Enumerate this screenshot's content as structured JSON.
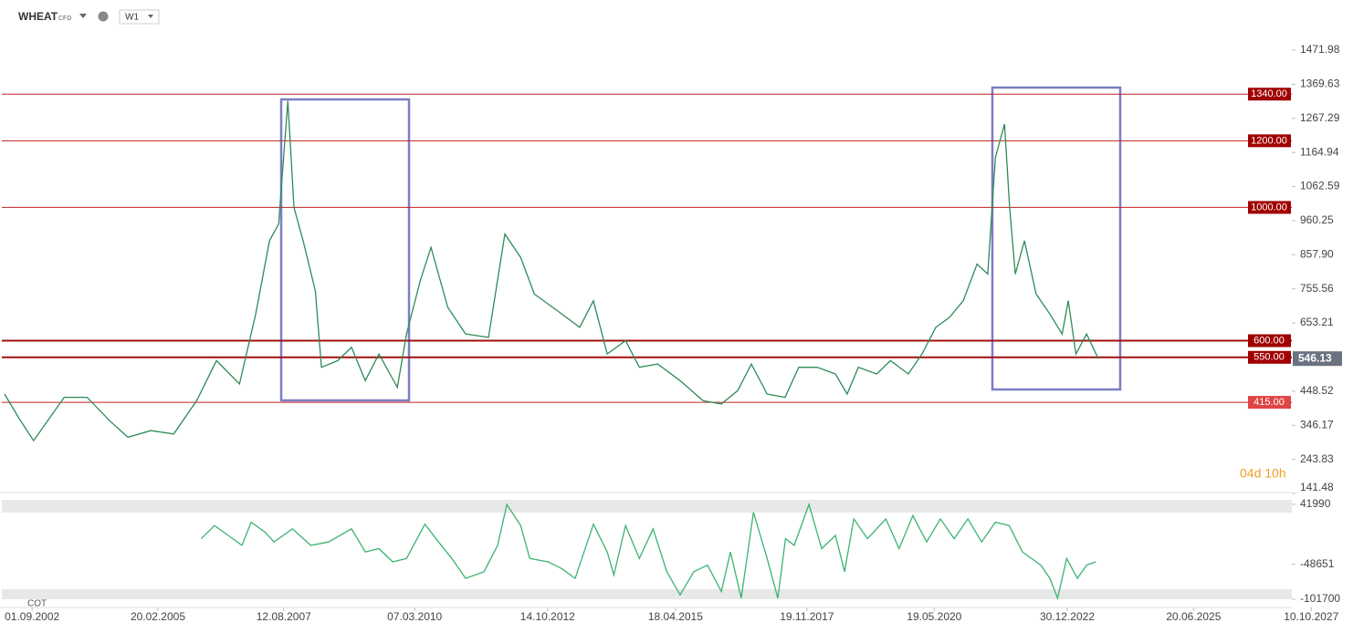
{
  "header": {
    "symbol": "WHEAT",
    "instrument": "CFD",
    "interval": "W1"
  },
  "countdown": "04d 10h",
  "chart_data": [
    {
      "type": "line",
      "series": [
        {
          "name": "WHEAT",
          "color": "#2e8b57",
          "x": [
            2002.13,
            2002.4,
            2002.7,
            2003.3,
            2003.75,
            2004.19,
            2004.55,
            2005.0,
            2005.45,
            2005.9,
            2006.29,
            2006.74,
            2007.06,
            2007.33,
            2007.51,
            2007.69,
            2007.81,
            2007.99,
            2008.23,
            2008.35,
            2008.67,
            2008.94,
            2009.21,
            2009.48,
            2009.84,
            2010.02,
            2010.29,
            2010.5,
            2010.83,
            2011.18,
            2011.63,
            2011.95,
            2012.26,
            2012.53,
            2012.98,
            2013.42,
            2013.69,
            2013.96,
            2014.32,
            2014.59,
            2014.95,
            2015.39,
            2015.84,
            2016.2,
            2016.52,
            2016.79,
            2017.1,
            2017.45,
            2017.72,
            2018.08,
            2018.44,
            2018.67,
            2018.89,
            2019.25,
            2019.52,
            2019.87,
            2020.14,
            2020.41,
            2020.68,
            2020.95,
            2021.22,
            2021.43,
            2021.58,
            2021.76,
            2021.86,
            2021.97,
            2022.15,
            2022.38,
            2022.65,
            2022.89,
            2023.01,
            2023.16,
            2023.37,
            2023.6
          ],
          "values": [
            440,
            370,
            300,
            430,
            430,
            360,
            310,
            330,
            320,
            420,
            540,
            470,
            680,
            900,
            950,
            1320,
            1000,
            900,
            750,
            520,
            540,
            580,
            480,
            560,
            460,
            620,
            780,
            880,
            700,
            620,
            610,
            920,
            850,
            740,
            690,
            640,
            720,
            560,
            600,
            520,
            530,
            480,
            420,
            410,
            450,
            530,
            440,
            430,
            520,
            520,
            500,
            440,
            520,
            500,
            540,
            500,
            560,
            640,
            670,
            720,
            830,
            800,
            1150,
            1250,
            1000,
            800,
            900,
            740,
            680,
            620,
            720,
            560,
            620,
            546.13
          ]
        }
      ],
      "current_price": {
        "value": 546.13,
        "label": "546.13"
      },
      "levels": [
        {
          "value": 1340,
          "label": "1340.00"
        },
        {
          "value": 1200,
          "label": "1200.00"
        },
        {
          "value": 1000,
          "label": "1000.00"
        },
        {
          "value": 600,
          "label": "600.00"
        },
        {
          "value": 550,
          "label": "550.00"
        },
        {
          "value": 415,
          "label": "415.00"
        }
      ],
      "ylim": [
        141.48,
        1471.98
      ],
      "yticks": [
        1471.98,
        1369.63,
        1267.29,
        1164.94,
        1062.59,
        960.25,
        {
          "value": 857.9,
          "label": "857.90"
        },
        755.56,
        653.21,
        448.52,
        346.17,
        243.83,
        141.48
      ],
      "xlim": [
        2002.04,
        2028.6
      ],
      "xticks": [
        {
          "value": 2002.67,
          "label": "01.09.2002"
        },
        {
          "value": 2005.14,
          "label": "20.02.2005"
        },
        {
          "value": 2007.61,
          "label": "12.08.2007"
        },
        {
          "value": 2010.18,
          "label": "07.03.2010"
        },
        {
          "value": 2012.79,
          "label": "14.10.2012"
        },
        {
          "value": 2015.3,
          "label": "18.04.2015"
        },
        {
          "value": 2017.88,
          "label": "19.11.2017"
        },
        {
          "value": 2020.38,
          "label": "19.05.2020"
        },
        {
          "value": 2022.99,
          "label": "30.12.2022"
        },
        {
          "value": 2025.47,
          "label": "20.06.2025"
        },
        {
          "value": 2027.78,
          "label": "10.10.2027"
        }
      ]
    },
    {
      "type": "line",
      "title": "COT",
      "series": [
        {
          "name": "COT",
          "color": "#3cb371",
          "x": [
            2005.99,
            2006.25,
            2006.52,
            2006.79,
            2006.97,
            2007.24,
            2007.42,
            2007.78,
            2008.14,
            2008.49,
            2008.94,
            2009.21,
            2009.48,
            2009.75,
            2010.02,
            2010.38,
            2010.65,
            2010.91,
            2011.18,
            2011.54,
            2011.81,
            2011.99,
            2012.26,
            2012.44,
            2012.8,
            2013.06,
            2013.33,
            2013.69,
            2013.96,
            2014.09,
            2014.32,
            2014.59,
            2014.86,
            2015.13,
            2015.39,
            2015.66,
            2015.93,
            2016.2,
            2016.38,
            2016.59,
            2016.83,
            2017.1,
            2017.31,
            2017.46,
            2017.63,
            2017.92,
            2018.17,
            2018.44,
            2018.62,
            2018.8,
            2019.07,
            2019.43,
            2019.69,
            2019.96,
            2020.23,
            2020.5,
            2020.77,
            2021.04,
            2021.31,
            2021.58,
            2021.85,
            2022.11,
            2022.47,
            2022.65,
            2022.8,
            2022.98,
            2023.19,
            2023.37,
            2023.55
          ],
          "values": [
            -10000,
            10000,
            -5000,
            -20000,
            15000,
            0,
            -15000,
            5000,
            -20000,
            -15000,
            5000,
            -30000,
            -25000,
            -45000,
            -40000,
            12000,
            -15000,
            -40000,
            -70000,
            -60000,
            -20000,
            41990,
            10000,
            -40000,
            -45000,
            -55000,
            -70000,
            12000,
            -30000,
            -65000,
            10000,
            -40000,
            5000,
            -60000,
            -95000,
            -60000,
            -50000,
            -90000,
            -30000,
            -100000,
            30000,
            -40000,
            -100000,
            -10000,
            -20000,
            41990,
            -25000,
            -5000,
            -60000,
            20000,
            -10000,
            20000,
            -25000,
            25000,
            -15000,
            20000,
            -10000,
            20000,
            -15000,
            15000,
            10000,
            -30000,
            -50000,
            -70000,
            -100000,
            -40000,
            -70000,
            -50000,
            -45000
          ]
        }
      ],
      "ylim": [
        -101700,
        41990
      ],
      "yticks": [
        41990,
        -48651,
        -101700
      ]
    }
  ]
}
